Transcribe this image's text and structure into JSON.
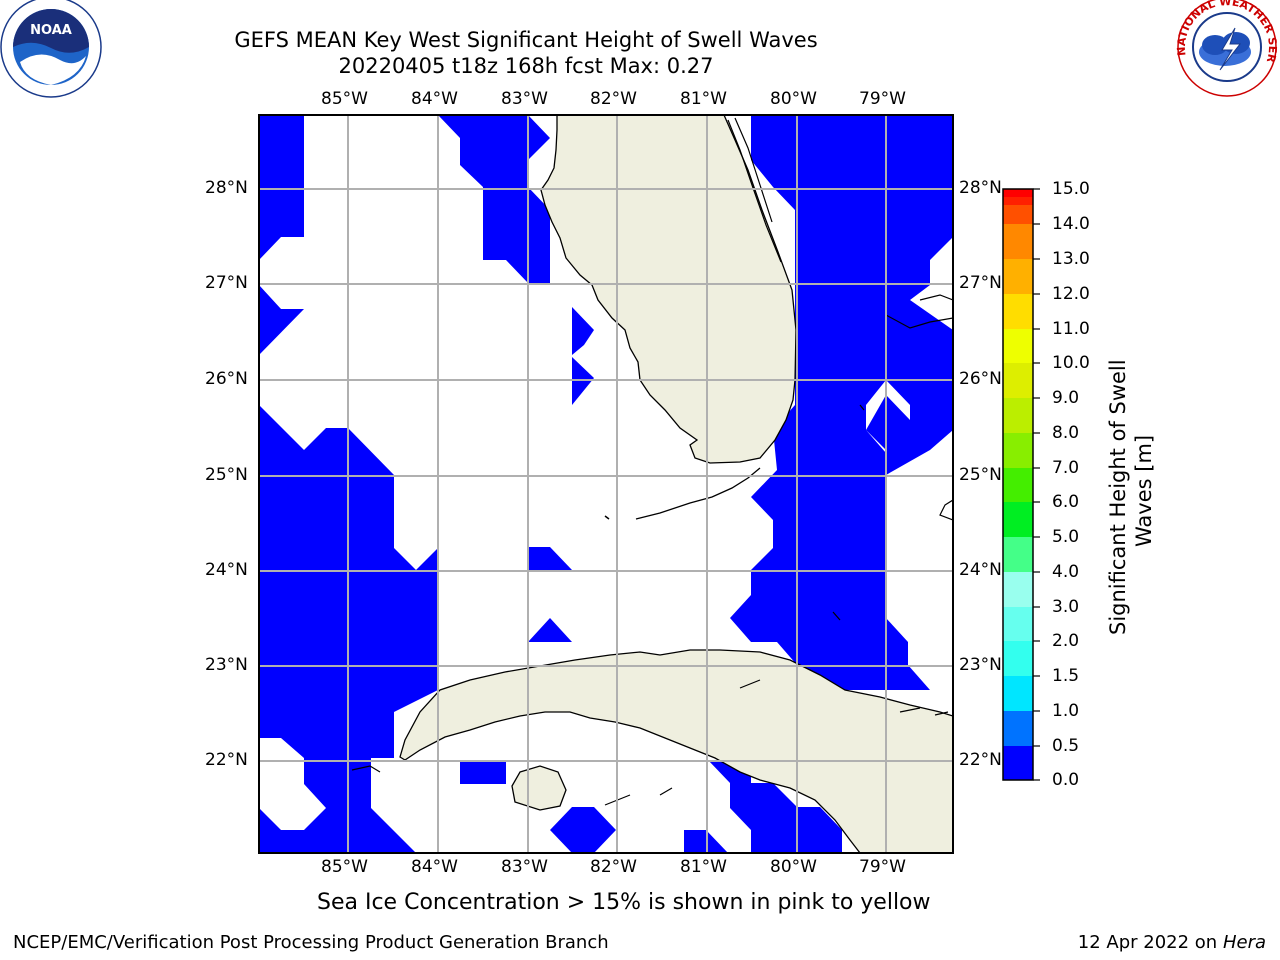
{
  "title_line1": "GEFS MEAN Key West Significant Height of Swell Waves",
  "title_line2": "20220405 t18z 168h fcst   Max: 0.27",
  "subcaption": "Sea Ice Concentration > 15% is shown in pink to yellow",
  "footer_left": "NCEP/EMC/Verification Post Processing Product Generation Branch",
  "footer_right_date": "12 Apr 2022 on ",
  "footer_right_host": "Hera",
  "logos": {
    "left": "noaa-logo",
    "right": "nws-logo"
  },
  "logo_text": {
    "noaa": "NOAA",
    "nws": "NATIONAL WEATHER SERVICE"
  },
  "map": {
    "lon_labels": [
      "85°W",
      "84°W",
      "83°W",
      "82°W",
      "81°W",
      "80°W",
      "79°W"
    ],
    "lat_labels": [
      "28°N",
      "27°N",
      "26°N",
      "25°N",
      "24°N",
      "23°N",
      "22°N"
    ],
    "colors": {
      "ocean_swell": "#0000ff",
      "land": "#efefdf",
      "grid": "#b0b0b0"
    }
  },
  "colorbar": {
    "label_line1": "Significant Height of Swell",
    "label_line2": "Waves [m]",
    "ticks": [
      "15.0",
      "14.0",
      "13.0",
      "12.0",
      "11.0",
      "10.0",
      "9.0",
      "8.0",
      "7.0",
      "6.0",
      "5.0",
      "4.0",
      "3.0",
      "2.0",
      "1.5",
      "1.0",
      "0.5",
      "0.0"
    ],
    "colors_bottom_to_top": [
      "#0000ff",
      "#0073ff",
      "#00e6ff",
      "#33ffee",
      "#66ffee",
      "#99ffee",
      "#44ff88",
      "#00ee22",
      "#44ee00",
      "#88ee00",
      "#bbee00",
      "#ddee00",
      "#eeff00",
      "#ffdd00",
      "#ffb000",
      "#ff8800",
      "#ff5000",
      "#ff2000",
      "#ff0000"
    ]
  }
}
